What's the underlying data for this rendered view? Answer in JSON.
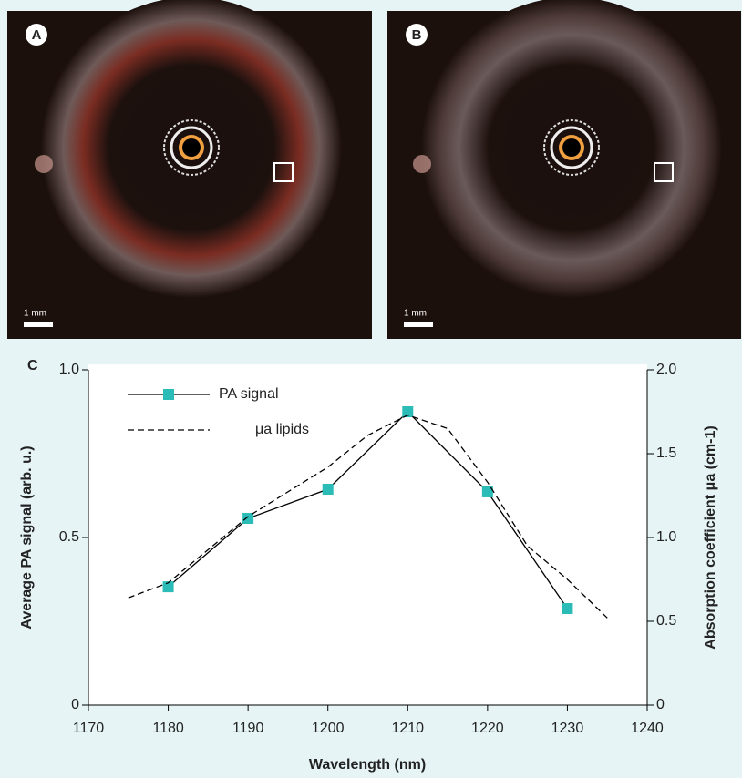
{
  "panels": [
    {
      "label": "A",
      "scale": "1 mm"
    },
    {
      "label": "B",
      "scale": "1 mm"
    }
  ],
  "chart_data": {
    "type": "line",
    "label": "C",
    "xlabel": "Wavelength (nm)",
    "ylabel": "Average PA signal (arb. u.)",
    "y2label": "Absorption coefficient μa (cm-1)",
    "xlim": [
      1170,
      1240
    ],
    "xticks": [
      1170,
      1180,
      1190,
      1200,
      1210,
      1220,
      1230,
      1240
    ],
    "ylim": [
      0,
      1
    ],
    "yticks": [
      0,
      0.5,
      {
        "value": 1,
        "label": "1.0"
      }
    ],
    "y2lim": [
      0,
      2
    ],
    "y2ticks": [
      0,
      0.5,
      {
        "value": 1,
        "label": "1.0"
      },
      1.5,
      {
        "value": 2,
        "label": "2.0"
      }
    ],
    "grid": false,
    "legend": "upper left",
    "series": [
      {
        "name": "PA signal",
        "color": "#2bbcb8",
        "line_color": "#000000",
        "marker": "square",
        "style": "solid",
        "x": [
          1180,
          1190,
          1200,
          1210,
          1220,
          1230
        ],
        "values": [
          0.353,
          0.557,
          0.644,
          0.875,
          0.636,
          0.288
        ]
      },
      {
        "name": "μa lipids",
        "color": "#000000",
        "style": "dashed",
        "axis": "y2",
        "x": [
          1175,
          1180,
          1190,
          1200,
          1205,
          1210,
          1215,
          1220,
          1225,
          1230,
          1235
        ],
        "values": [
          0.64,
          0.73,
          1.125,
          1.42,
          1.61,
          1.73,
          1.65,
          1.33,
          0.95,
          0.75,
          0.52
        ]
      }
    ]
  }
}
